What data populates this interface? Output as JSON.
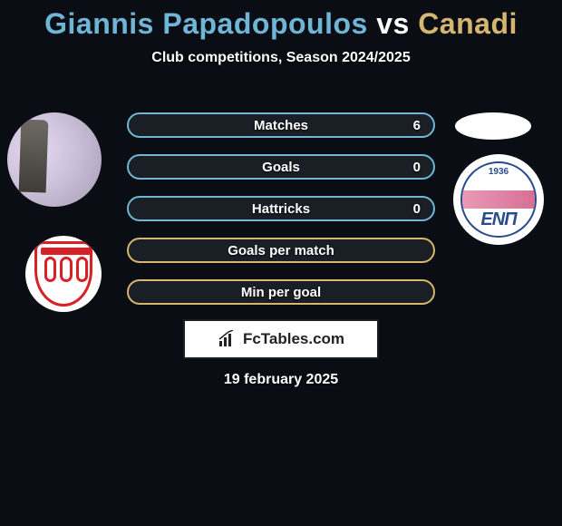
{
  "title_parts": {
    "player1": "Giannis Papadopoulos",
    "vs": " vs ",
    "player2": "Canadi"
  },
  "title_colors": {
    "player1": "#6fb5d6",
    "vs": "#ffffff",
    "player2": "#d6b56f"
  },
  "subtitle": "Club competitions, Season 2024/2025",
  "stats": [
    {
      "label": "Matches",
      "value": "6",
      "border_color": "#6fb5d6"
    },
    {
      "label": "Goals",
      "value": "0",
      "border_color": "#6fb5d6"
    },
    {
      "label": "Hattricks",
      "value": "0",
      "border_color": "#6fb5d6"
    },
    {
      "label": "Goals per match",
      "value": "",
      "border_color": "#d6b56f"
    },
    {
      "label": "Min per goal",
      "value": "",
      "border_color": "#d6b56f"
    }
  ],
  "brand": "FcTables.com",
  "date": "19 february 2025",
  "right_crest_year": "1936",
  "right_crest_letters": "ENП",
  "background_color": "#0a0e14",
  "bar_bg_color": "#1a1f26",
  "text_color": "#ffffff"
}
